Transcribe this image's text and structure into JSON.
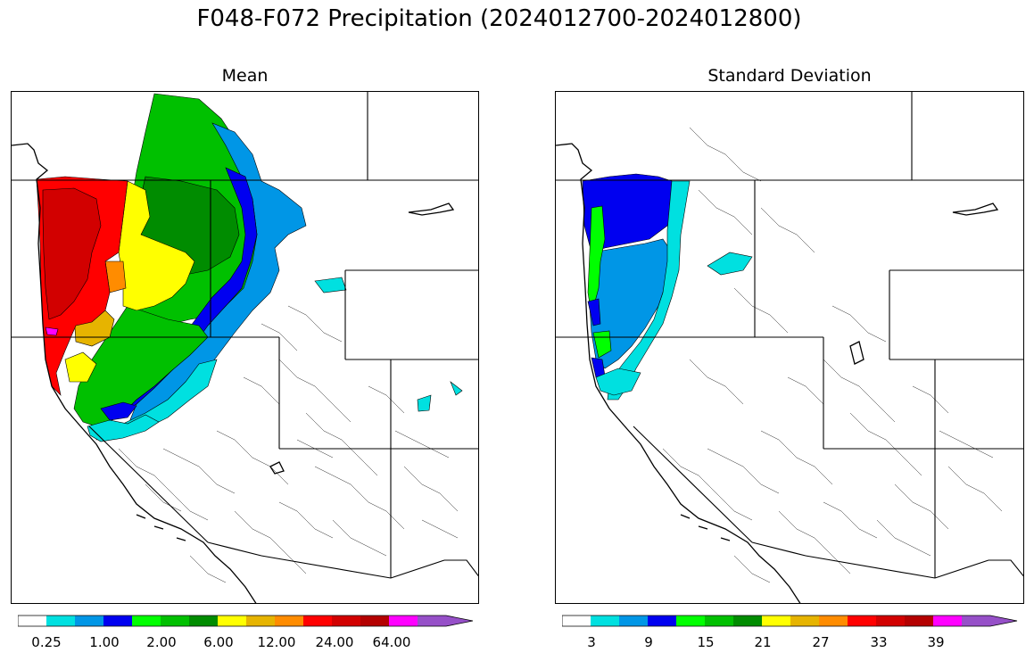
{
  "figure": {
    "title": "F048-F072 Precipitation (2024012700-2024012800)"
  },
  "panels": [
    {
      "title": "Mean",
      "colorbar": {
        "colors": [
          "#ffffff",
          "#00e0e0",
          "#0096e6",
          "#0000f0",
          "#00ff00",
          "#00c000",
          "#008c00",
          "#ffff00",
          "#e6b400",
          "#ff8c00",
          "#ff0000",
          "#d20000",
          "#b40000",
          "#ff00ff",
          "#9650c8"
        ],
        "extend": "max",
        "tick_labels": [
          "0.25",
          "1.00",
          "2.00",
          "6.00",
          "12.00",
          "24.00",
          "64.00"
        ]
      }
    },
    {
      "title": "Standard Deviation",
      "colorbar": {
        "colors": [
          "#ffffff",
          "#00e0e0",
          "#0096e6",
          "#0000f0",
          "#00ff00",
          "#00c000",
          "#008c00",
          "#ffff00",
          "#e6b400",
          "#ff8c00",
          "#ff0000",
          "#d20000",
          "#b40000",
          "#ff00ff",
          "#9650c8"
        ],
        "extend": "max",
        "tick_labels": [
          "3",
          "9",
          "15",
          "21",
          "27",
          "33",
          "39"
        ]
      }
    }
  ]
}
